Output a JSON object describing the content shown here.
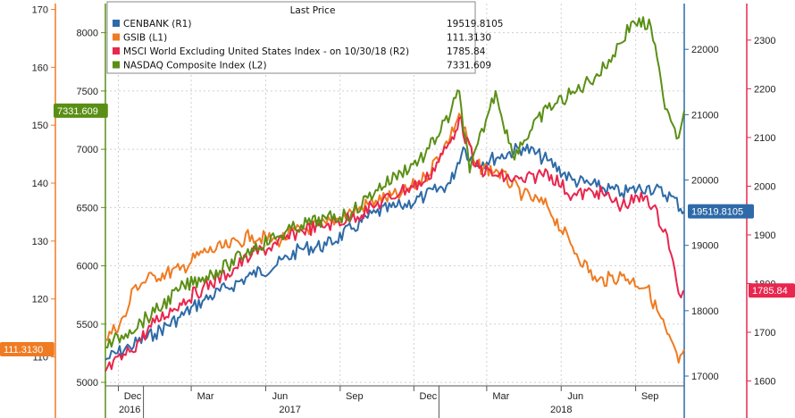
{
  "chart_data": {
    "type": "line",
    "legend": {
      "title": "Last Price",
      "placement": "top-left",
      "entries": [
        {
          "name": "CENBANK  (R1)",
          "value": "19519.8105",
          "color": "#2e6aa8"
        },
        {
          "name": "GSIB  (L1)",
          "value": "111.3130",
          "color": "#ef7b22"
        },
        {
          "name": "MSCI World Excluding United States Index -  on 10/30/18  (R2)",
          "value": "1785.84",
          "color": "#e8264e"
        },
        {
          "name": "NASDAQ Composite Index  (L2)",
          "value": "7331.609",
          "color": "#5a8f15"
        }
      ]
    },
    "x_axis": {
      "month_labels": [
        "Dec",
        "Mar",
        "Jun",
        "Sep",
        "Dec",
        "Mar",
        "Jun",
        "Sep"
      ],
      "year_labels": [
        "2016",
        "2017",
        "2018"
      ],
      "range": [
        "2016-11-15",
        "2018-10-31"
      ]
    },
    "axes": {
      "L1": {
        "ylim": [
          105,
          171
        ],
        "ticks": [
          110,
          120,
          130,
          140,
          150,
          160,
          170
        ],
        "color": "#ef7b22"
      },
      "L2": {
        "ylim": [
          4970,
          8250
        ],
        "ticks": [
          5000,
          5500,
          6000,
          6500,
          7000,
          7500,
          8000
        ],
        "color": "#5a8f15"
      },
      "R1": {
        "ylim": [
          16850,
          22700
        ],
        "ticks": [
          17000,
          18000,
          19000,
          20000,
          21000,
          22000
        ],
        "color": "#2e6aa8"
      },
      "R2": {
        "ylim": [
          1590,
          2375
        ],
        "ticks": [
          1600,
          1700,
          1800,
          1900,
          2000,
          2100,
          2200,
          2300
        ],
        "color": "#e8264e"
      }
    },
    "last_value_tags": [
      {
        "axis": "L1",
        "value": 111.313,
        "label": "111.3130",
        "color": "#ef7b22"
      },
      {
        "axis": "L2",
        "value": 7331.609,
        "label": "7331.609",
        "color": "#5a8f15"
      },
      {
        "axis": "R1",
        "value": 19519.8105,
        "label": "19519.8105",
        "color": "#2e6aa8"
      },
      {
        "axis": "R2",
        "value": 1785.84,
        "label": "1785.84",
        "color": "#e8264e"
      }
    ],
    "grid": true,
    "series": [
      {
        "name": "CENBANK  (R1)",
        "axis": "R1",
        "color": "#2e6aa8",
        "x": [
          "2016-11-15",
          "2016-12-15",
          "2017-01-15",
          "2017-02-15",
          "2017-03-15",
          "2017-04-15",
          "2017-05-15",
          "2017-06-15",
          "2017-07-15",
          "2017-08-15",
          "2017-09-15",
          "2017-10-15",
          "2017-11-15",
          "2017-12-15",
          "2018-01-15",
          "2018-01-31",
          "2018-02-15",
          "2018-03-15",
          "2018-04-15",
          "2018-05-15",
          "2018-06-15",
          "2018-07-15",
          "2018-08-15",
          "2018-09-15",
          "2018-10-15",
          "2018-10-31"
        ],
        "y": [
          17250,
          17450,
          17650,
          17900,
          18150,
          18350,
          18550,
          18700,
          18950,
          19000,
          19250,
          19500,
          19600,
          19750,
          19950,
          20500,
          20250,
          20350,
          20500,
          20300,
          20000,
          19900,
          19800,
          19900,
          19750,
          19519.81
        ]
      },
      {
        "name": "GSIB  (L1)",
        "axis": "L1",
        "color": "#ef7b22",
        "x": [
          "2016-11-15",
          "2016-12-10",
          "2016-12-20",
          "2017-01-15",
          "2017-02-15",
          "2017-03-15",
          "2017-04-15",
          "2017-05-15",
          "2017-06-15",
          "2017-07-15",
          "2017-08-15",
          "2017-09-15",
          "2017-10-15",
          "2017-11-15",
          "2017-12-15",
          "2018-01-15",
          "2018-01-26",
          "2018-02-15",
          "2018-03-15",
          "2018-04-15",
          "2018-05-15",
          "2018-06-15",
          "2018-07-15",
          "2018-08-15",
          "2018-09-15",
          "2018-10-10",
          "2018-10-24",
          "2018-10-31"
        ],
        "y": [
          113,
          117,
          122,
          124,
          125,
          128,
          129,
          131,
          130,
          132,
          133,
          135,
          137,
          138,
          141,
          148,
          152,
          143,
          142,
          138,
          136,
          129,
          123,
          124,
          122,
          114,
          109,
          111.31
        ]
      },
      {
        "name": "MSCI World Excluding United States Index -  on 10/30/18  (R2)",
        "axis": "R2",
        "color": "#e8264e",
        "x": [
          "2016-11-15",
          "2016-12-15",
          "2017-01-15",
          "2017-02-15",
          "2017-03-15",
          "2017-04-15",
          "2017-05-15",
          "2017-06-15",
          "2017-07-15",
          "2017-08-15",
          "2017-09-15",
          "2017-10-15",
          "2017-11-15",
          "2017-12-15",
          "2018-01-15",
          "2018-01-26",
          "2018-02-15",
          "2018-03-15",
          "2018-04-15",
          "2018-05-15",
          "2018-06-15",
          "2018-07-15",
          "2018-08-15",
          "2018-09-15",
          "2018-10-10",
          "2018-10-24",
          "2018-10-30"
        ],
        "y": [
          1620,
          1660,
          1720,
          1760,
          1790,
          1820,
          1860,
          1880,
          1910,
          1920,
          1935,
          1960,
          1990,
          2010,
          2090,
          2140,
          2040,
          2020,
          2010,
          2030,
          1980,
          1990,
          1960,
          1980,
          1900,
          1780,
          1785.84
        ]
      },
      {
        "name": "NASDAQ Composite Index  (L2)",
        "axis": "L2",
        "color": "#5a8f15",
        "x": [
          "2016-11-15",
          "2016-12-15",
          "2017-01-15",
          "2017-02-15",
          "2017-03-15",
          "2017-04-15",
          "2017-05-15",
          "2017-06-15",
          "2017-07-15",
          "2017-08-15",
          "2017-09-15",
          "2017-10-15",
          "2017-11-15",
          "2017-12-15",
          "2018-01-15",
          "2018-01-26",
          "2018-02-08",
          "2018-02-28",
          "2018-03-12",
          "2018-04-02",
          "2018-05-15",
          "2018-06-20",
          "2018-07-25",
          "2018-08-29",
          "2018-09-20",
          "2018-10-05",
          "2018-10-24",
          "2018-10-31"
        ],
        "y": [
          5300,
          5450,
          5600,
          5800,
          5900,
          6000,
          6150,
          6250,
          6350,
          6400,
          6450,
          6650,
          6800,
          6950,
          7300,
          7500,
          6800,
          7250,
          7500,
          6950,
          7350,
          7500,
          7700,
          8100,
          8050,
          7450,
          7100,
          7331.61
        ]
      }
    ]
  }
}
